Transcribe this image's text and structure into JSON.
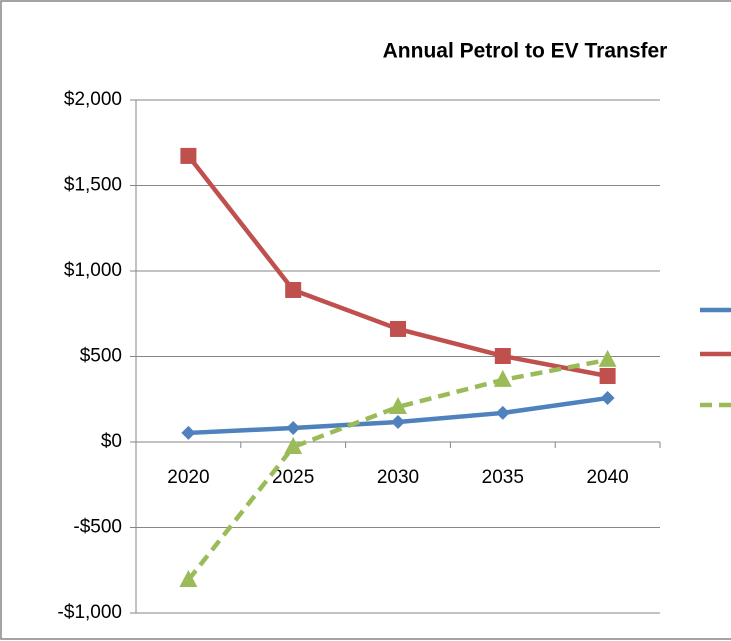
{
  "chart_data": {
    "type": "line",
    "title": "Annual Petrol to EV Transfer",
    "categories": [
      "2020",
      "2025",
      "2030",
      "2035",
      "2040"
    ],
    "series": [
      {
        "color": "#4f81bd",
        "marker": "diamond",
        "dash": false,
        "values": [
          53,
          82,
          117,
          170,
          257
        ]
      },
      {
        "color": "#c0504d",
        "marker": "square",
        "dash": false,
        "values": [
          1673,
          889,
          661,
          503,
          386
        ]
      },
      {
        "color": "#9bbb59",
        "marker": "triangle",
        "dash": true,
        "values": [
          -807,
          -29,
          205,
          363,
          480
        ]
      }
    ],
    "ylim": [
      -1000,
      2000
    ],
    "yticks": [
      {
        "value": -1000,
        "label": "-$1,000"
      },
      {
        "value": -500,
        "label": "-$500"
      },
      {
        "value": 0,
        "label": "$0"
      },
      {
        "value": 500,
        "label": "$500"
      },
      {
        "value": 1000,
        "label": "$1,000"
      },
      {
        "value": 1500,
        "label": "$1,500"
      },
      {
        "value": 2000,
        "label": "$2,000"
      }
    ],
    "grid": true,
    "legend": "right"
  }
}
